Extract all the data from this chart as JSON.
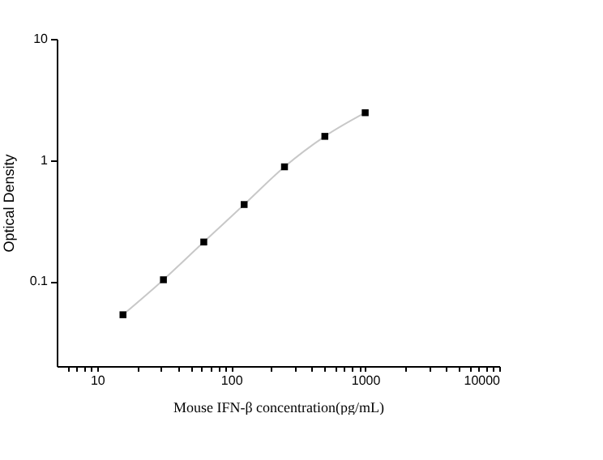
{
  "chart_data": {
    "type": "scatter",
    "xlabel": "Mouse IFN-β  concentration(pg/mL)",
    "ylabel": "Optical Density",
    "log": "xy",
    "grid": false,
    "xlim": [
      5,
      10000
    ],
    "ylim": [
      0.02,
      10
    ],
    "xticks": [
      {
        "value": 6,
        "label": null
      },
      {
        "value": 7,
        "label": null
      },
      {
        "value": 8,
        "label": null
      },
      {
        "value": 9,
        "label": null
      },
      10,
      {
        "value": 20,
        "label": null
      },
      {
        "value": 30,
        "label": null
      },
      {
        "value": 40,
        "label": null
      },
      {
        "value": 50,
        "label": null
      },
      {
        "value": 60,
        "label": null
      },
      {
        "value": 70,
        "label": null
      },
      {
        "value": 80,
        "label": null
      },
      {
        "value": 90,
        "label": null
      },
      100,
      {
        "value": 200,
        "label": null
      },
      {
        "value": 300,
        "label": null
      },
      {
        "value": 400,
        "label": null
      },
      {
        "value": 500,
        "label": null
      },
      {
        "value": 600,
        "label": null
      },
      {
        "value": 700,
        "label": null
      },
      {
        "value": 800,
        "label": null
      },
      {
        "value": 900,
        "label": null
      },
      1000,
      {
        "value": 2000,
        "label": null
      },
      {
        "value": 3000,
        "label": null
      },
      {
        "value": 4000,
        "label": null
      },
      {
        "value": 5000,
        "label": null
      },
      {
        "value": 6000,
        "label": null
      },
      {
        "value": 7000,
        "label": null
      },
      {
        "value": 8000,
        "label": null
      },
      {
        "value": 9000,
        "label": null
      },
      10000
    ],
    "yticks": [
      0.1,
      1,
      10
    ],
    "series": [
      {
        "type": "line",
        "color": "#c8c8c8",
        "marker": "none",
        "line_style": "solid",
        "x": [
          15.6,
          31.25,
          62.5,
          125,
          250,
          500,
          1000
        ],
        "values": [
          0.053,
          0.103,
          0.211,
          0.43,
          0.88,
          1.57,
          2.46
        ]
      },
      {
        "color": "#000000",
        "marker": "square",
        "x": [
          15.6,
          31.25,
          62.5,
          125,
          250,
          500,
          1000
        ],
        "values": [
          0.053,
          0.103,
          0.211,
          0.43,
          0.88,
          1.57,
          2.46
        ]
      }
    ]
  }
}
